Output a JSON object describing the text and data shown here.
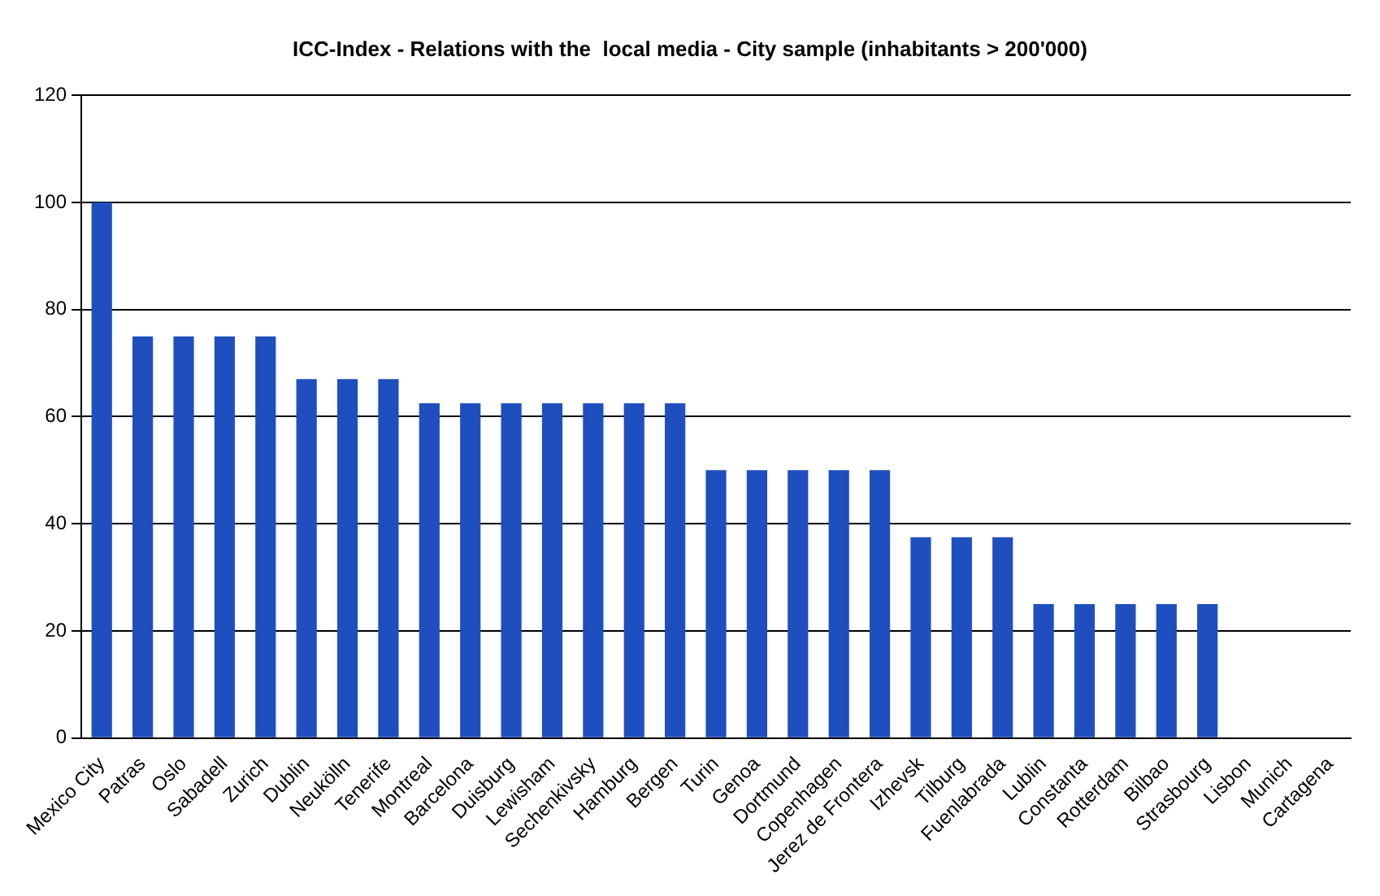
{
  "chart_data": {
    "type": "bar",
    "title": "ICC-Index - Relations with the  local media - City sample (inhabitants > 200'000)",
    "categories": [
      "Mexico City",
      "Patras",
      "Oslo",
      "Sabadell",
      "Zurich",
      "Dublin",
      "Neukölln",
      "Tenerife",
      "Montreal",
      "Barcelona",
      "Duisburg",
      "Lewisham",
      "Sechenkivsky",
      "Hamburg",
      "Bergen",
      "Turin",
      "Genoa",
      "Dortmund",
      "Copenhagen",
      "Jerez de Frontera",
      "Izhevsk",
      "Tilburg",
      "Fuenlabrada",
      "Lublin",
      "Constanta",
      "Rotterdam",
      "Bilbao",
      "Strasbourg",
      "Lisbon",
      "Munich",
      "Cartagena"
    ],
    "values": [
      100,
      75,
      75,
      75,
      75,
      67,
      67,
      67,
      62.5,
      62.5,
      62.5,
      62.5,
      62.5,
      62.5,
      62.5,
      50,
      50,
      50,
      50,
      50,
      37.5,
      37.5,
      37.5,
      25,
      25,
      25,
      25,
      25,
      0,
      0,
      0
    ],
    "color": "#1f4fbf",
    "ylim": [
      0,
      120
    ],
    "yticks": [
      0,
      20,
      40,
      60,
      80,
      100,
      120
    ],
    "grid": "y"
  }
}
